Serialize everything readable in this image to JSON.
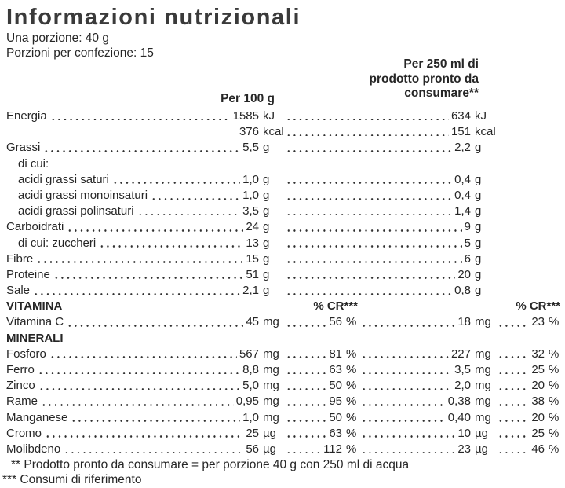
{
  "page": {
    "title": "Informazioni nutrizionali",
    "serving_line": "Una porzione: 40 g",
    "servings_line": "Porzioni per confezione: 15",
    "col_per_100g": "Per 100 g",
    "col_per_250ml": [
      "Per 250 ml di",
      "prodotto pronto da",
      "consumare**"
    ],
    "cr_header": "% CR***",
    "footnotes": [
      "** Prodotto pronto da consumare = per porzione 40 g con 250 ml di acqua",
      "*** Consumi di riferimento"
    ]
  },
  "table": {
    "rows": [
      {
        "label": "Energia",
        "kind": "a",
        "c1": [
          "1585",
          "kJ"
        ],
        "c2": [
          "634",
          "kJ"
        ]
      },
      {
        "label": "",
        "kind": "a",
        "nodots1": true,
        "c1": [
          "376",
          "kcal"
        ],
        "c2": [
          "151",
          "kcal"
        ]
      },
      {
        "label": "Grassi",
        "kind": "a",
        "c1": [
          "5,5",
          "g"
        ],
        "c2": [
          "2,2",
          "g"
        ]
      },
      {
        "label": "di cui:",
        "kind": "label",
        "indent": 1
      },
      {
        "label": "acidi grassi saturi",
        "kind": "a",
        "indent": 1,
        "c1": [
          "1,0",
          "g"
        ],
        "c2": [
          "0,4",
          "g"
        ]
      },
      {
        "label": "acidi grassi monoinsaturi",
        "kind": "a",
        "indent": 1,
        "c1": [
          "1,0",
          "g"
        ],
        "c2": [
          "0,4",
          "g"
        ]
      },
      {
        "label": "acidi grassi polinsaturi",
        "kind": "a",
        "indent": 1,
        "c1": [
          "3,5",
          "g"
        ],
        "c2": [
          "1,4",
          "g"
        ]
      },
      {
        "label": "Carboidrati",
        "kind": "a",
        "c1": [
          "24",
          "g"
        ],
        "c2": [
          "9",
          "g"
        ]
      },
      {
        "label": "di cui: zuccheri",
        "kind": "a",
        "indent": 1,
        "c1": [
          "13",
          "g"
        ],
        "c2": [
          "5",
          "g"
        ]
      },
      {
        "label": "Fibre",
        "kind": "a",
        "c1": [
          "15",
          "g"
        ],
        "c2": [
          "6",
          "g"
        ]
      },
      {
        "label": "Proteine",
        "kind": "a",
        "c1": [
          "51",
          "g"
        ],
        "c2": [
          "20",
          "g"
        ]
      },
      {
        "label": "Sale",
        "kind": "a",
        "c1": [
          "2,1",
          "g"
        ],
        "c2": [
          "0,8",
          "g"
        ]
      },
      {
        "label": "VITAMINA",
        "kind": "cr",
        "bold": true
      },
      {
        "label": "Vitamina C",
        "kind": "b",
        "c1": [
          "45",
          "mg"
        ],
        "p1": [
          "56",
          "%"
        ],
        "c2": [
          "18",
          "mg"
        ],
        "p2": [
          "23",
          "%"
        ]
      },
      {
        "label": "MINERALI",
        "kind": "label",
        "bold": true
      },
      {
        "label": "Fosforo",
        "kind": "b",
        "c1": [
          "567",
          "mg"
        ],
        "p1": [
          "81",
          "%"
        ],
        "c2": [
          "227",
          "mg"
        ],
        "p2": [
          "32",
          "%"
        ]
      },
      {
        "label": "Ferro",
        "kind": "b",
        "c1": [
          "8,8",
          "mg"
        ],
        "p1": [
          "63",
          "%"
        ],
        "c2": [
          "3,5",
          "mg"
        ],
        "p2": [
          "25",
          "%"
        ]
      },
      {
        "label": "Zinco",
        "kind": "b",
        "c1": [
          "5,0",
          "mg"
        ],
        "p1": [
          "50",
          "%"
        ],
        "c2": [
          "2,0",
          "mg"
        ],
        "p2": [
          "20",
          "%"
        ]
      },
      {
        "label": "Rame",
        "kind": "b",
        "c1": [
          "0,95",
          "mg"
        ],
        "p1": [
          "95",
          "%"
        ],
        "c2": [
          "0,38",
          "mg"
        ],
        "p2": [
          "38",
          "%"
        ]
      },
      {
        "label": "Manganese",
        "kind": "b",
        "c1": [
          "1,0",
          "mg"
        ],
        "p1": [
          "50",
          "%"
        ],
        "c2": [
          "0,40",
          "mg"
        ],
        "p2": [
          "20",
          "%"
        ]
      },
      {
        "label": "Cromo",
        "kind": "b",
        "c1": [
          "25",
          "µg"
        ],
        "p1": [
          "63",
          "%"
        ],
        "c2": [
          "10",
          "µg"
        ],
        "p2": [
          "25",
          "%"
        ]
      },
      {
        "label": "Molibdeno",
        "kind": "b",
        "c1": [
          "56",
          "µg"
        ],
        "p1": [
          "112",
          "%"
        ],
        "c2": [
          "23",
          "µg"
        ],
        "p2": [
          "46",
          "%"
        ]
      }
    ]
  }
}
